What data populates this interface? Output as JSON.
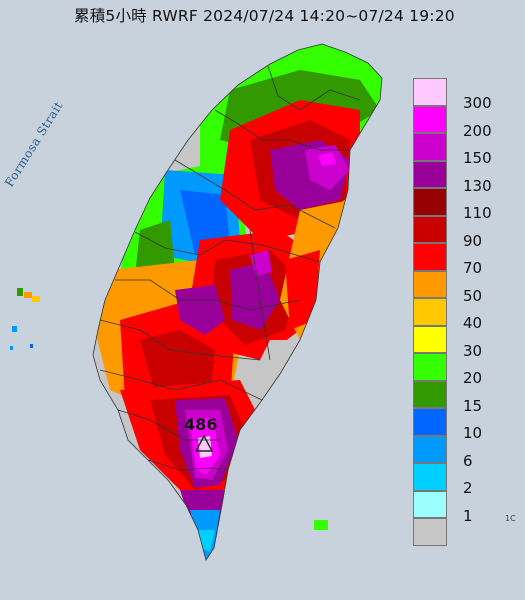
{
  "title": "累積5小時 RWRF 2024/07/24 14:20~07/24 19:20",
  "strait_label": "Formosa Strait",
  "max_label": "486",
  "max_marker_icon": "triangle-icon",
  "edge_text": "1C",
  "legend": [
    {
      "label": "300",
      "color": "#ffc8ff"
    },
    {
      "label": "200",
      "color": "#ff00ff"
    },
    {
      "label": "150",
      "color": "#cc00cc"
    },
    {
      "label": "130",
      "color": "#990099"
    },
    {
      "label": "110",
      "color": "#960000"
    },
    {
      "label": "90",
      "color": "#c80000"
    },
    {
      "label": "70",
      "color": "#ff0000"
    },
    {
      "label": "50",
      "color": "#ff9900"
    },
    {
      "label": "40",
      "color": "#ffc800"
    },
    {
      "label": "30",
      "color": "#ffff00"
    },
    {
      "label": "20",
      "color": "#33ff00"
    },
    {
      "label": "15",
      "color": "#339900"
    },
    {
      "label": "10",
      "color": "#0066ff"
    },
    {
      "label": "6",
      "color": "#009aff"
    },
    {
      "label": "2",
      "color": "#00cfff"
    },
    {
      "label": "1",
      "color": "#99ffff"
    },
    {
      "label": "",
      "color": "#c6c6c6"
    }
  ],
  "colors": {
    "sea": "#c7d2dd",
    "boundary": "#333333"
  }
}
